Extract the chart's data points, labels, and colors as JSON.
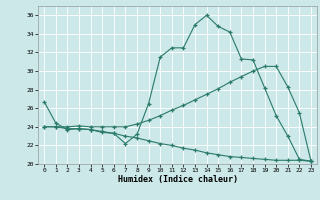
{
  "xlabel": "Humidex (Indice chaleur)",
  "background_color": "#cce8e8",
  "grid_color": "#ffffff",
  "line_color": "#2a7a6a",
  "xlim": [
    -0.5,
    23.5
  ],
  "ylim": [
    20,
    37
  ],
  "xticks": [
    0,
    1,
    2,
    3,
    4,
    5,
    6,
    7,
    8,
    9,
    10,
    11,
    12,
    13,
    14,
    15,
    16,
    17,
    18,
    19,
    20,
    21,
    22,
    23
  ],
  "yticks": [
    20,
    22,
    24,
    26,
    28,
    30,
    32,
    34,
    36
  ],
  "series1_x": [
    0,
    1,
    2,
    3,
    4,
    5,
    6,
    7,
    8,
    9,
    10,
    11,
    12,
    13,
    14,
    15,
    16,
    17,
    18,
    19,
    20,
    21,
    22,
    23
  ],
  "series1_y": [
    26.7,
    24.4,
    23.7,
    23.8,
    23.7,
    23.4,
    23.3,
    22.2,
    23.2,
    26.5,
    31.5,
    32.5,
    32.5,
    35.0,
    36.0,
    34.8,
    34.2,
    31.3,
    31.2,
    28.2,
    25.2,
    23.0,
    20.5,
    20.3
  ],
  "series2_x": [
    0,
    1,
    2,
    3,
    4,
    5,
    6,
    7,
    8,
    9,
    10,
    11,
    12,
    13,
    14,
    15,
    16,
    17,
    18,
    19,
    20,
    21,
    22,
    23
  ],
  "series2_y": [
    24.0,
    24.0,
    24.0,
    24.1,
    24.0,
    24.0,
    24.0,
    24.0,
    24.3,
    24.7,
    25.2,
    25.8,
    26.3,
    26.9,
    27.5,
    28.1,
    28.8,
    29.4,
    30.0,
    30.5,
    30.5,
    28.3,
    25.5,
    20.3
  ],
  "series3_x": [
    0,
    1,
    2,
    3,
    4,
    5,
    6,
    7,
    8,
    9,
    10,
    11,
    12,
    13,
    14,
    15,
    16,
    17,
    18,
    19,
    20,
    21,
    22,
    23
  ],
  "series3_y": [
    24.0,
    24.0,
    23.8,
    23.8,
    23.7,
    23.5,
    23.3,
    23.0,
    22.8,
    22.5,
    22.2,
    22.0,
    21.7,
    21.5,
    21.2,
    21.0,
    20.8,
    20.7,
    20.6,
    20.5,
    20.4,
    20.4,
    20.4,
    20.3
  ]
}
